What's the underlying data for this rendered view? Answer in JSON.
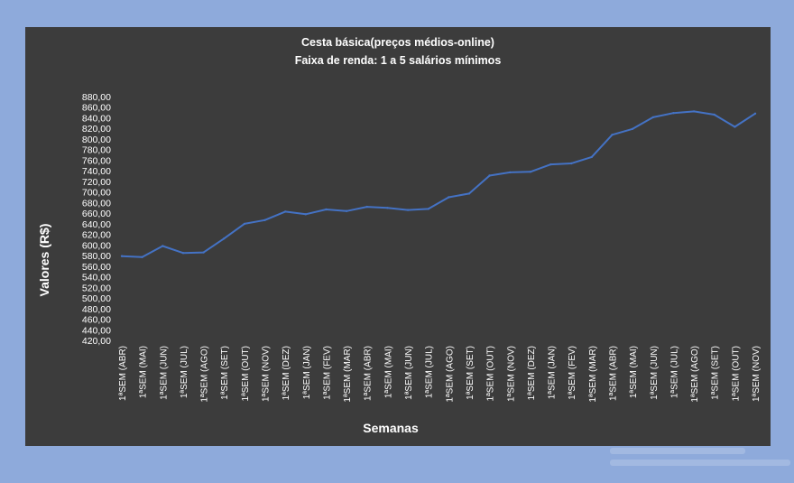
{
  "chart_data": {
    "type": "line",
    "title": "Cesta básica(preços médios-online)",
    "subtitle": "Faixa de renda: 1 a 5 salários mínimos",
    "xlabel": "Semanas",
    "ylabel": "Valores (R$)",
    "ylim": [
      420,
      880
    ],
    "ystep": 20,
    "y_tick_labels": [
      "880,00",
      "860,00",
      "840,00",
      "820,00",
      "800,00",
      "780,00",
      "760,00",
      "740,00",
      "720,00",
      "700,00",
      "680,00",
      "660,00",
      "640,00",
      "620,00",
      "600,00",
      "580,00",
      "560,00",
      "540,00",
      "520,00",
      "500,00",
      "480,00",
      "460,00",
      "440,00",
      "420,00"
    ],
    "categories": [
      "1ªSEM (ABR)",
      "1ªSEM (MAI)",
      "1ªSEM (JUN)",
      "1ªSEM (JUL)",
      "1ªSEM (AGO)",
      "1ªSEM (SET)",
      "1ªSEM (OUT)",
      "1ªSEM (NOV)",
      "1ªSEM (DEZ)",
      "1ªSEM (JAN)",
      "1ªSEM (FEV)",
      "1ªSEM (MAR)",
      "1ªSEM (ABR)",
      "1ªSEM (MAI)",
      "1ªSEM (JUN)",
      "1ªSEM (JUL)",
      "1ªSEM (AGO)",
      "1ªSEM (SET)",
      "1ªSEM (OUT)",
      "1ªSEM (NOV)",
      "1ªSEM (DEZ)",
      "1ªSEM (JAN)",
      "1ªSEM (FEV)",
      "1ªSEM (MAR)",
      "1ªSEM (ABR)",
      "1ªSEM (MAI)",
      "1ªSEM (JUN)",
      "1ªSEM (JUL)",
      "1ªSEM (AGO)",
      "1ªSEM (SET)",
      "1ªSEM (OUT)",
      "1ªSEM (NOV)"
    ],
    "series": [
      {
        "values": [
          579,
          577,
          598,
          585,
          586,
          612,
          640,
          647,
          663,
          658,
          667,
          664,
          672,
          670,
          666,
          668,
          690,
          697,
          731,
          737,
          738,
          752,
          754,
          766,
          808,
          819,
          841,
          849,
          852,
          846,
          823,
          848
        ],
        "color": "#4472c4"
      }
    ],
    "grid": false,
    "legend": "none"
  },
  "colors": {
    "page_background": "#8eaadb",
    "plot_background": "#3c3c3c",
    "text": "#ffffff",
    "line": "#4472c4"
  }
}
